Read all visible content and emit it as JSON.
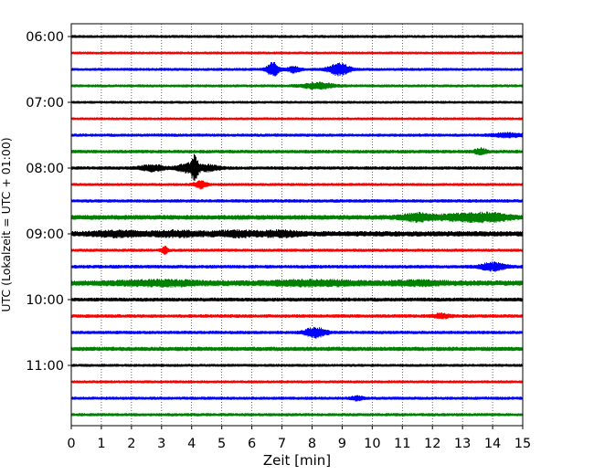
{
  "chart_data": {
    "type": "line",
    "xlabel": "Zeit  [min]",
    "ylabel": "UTC (Lokalzeit = UTC + 01:00)",
    "xlim": [
      0,
      15
    ],
    "x_ticks": [
      0,
      1,
      2,
      3,
      4,
      5,
      6,
      7,
      8,
      9,
      10,
      11,
      12,
      13,
      14,
      15
    ],
    "y_tick_labels": [
      "06:00",
      "07:00",
      "08:00",
      "09:00",
      "10:00",
      "11:00"
    ],
    "y_tick_rows": [
      0,
      4,
      8,
      12,
      16,
      20
    ],
    "row_interval_minutes": 15,
    "grid": "vertical-dotted",
    "colors": [
      "#000000",
      "#ff0000",
      "#0000ff",
      "#008000"
    ],
    "rows": [
      {
        "time": "06:00",
        "color": "#000000",
        "amp": 1.3,
        "events": []
      },
      {
        "time": "06:15",
        "color": "#ff0000",
        "amp": 1.2,
        "events": []
      },
      {
        "time": "06:30",
        "color": "#0000ff",
        "amp": 1.3,
        "events": [
          {
            "t": 6.7,
            "a": 7,
            "w": 0.2
          },
          {
            "t": 7.4,
            "a": 3,
            "w": 0.2
          },
          {
            "t": 8.9,
            "a": 6,
            "w": 0.35
          }
        ]
      },
      {
        "time": "06:45",
        "color": "#008000",
        "amp": 1.3,
        "events": [
          {
            "t": 8.2,
            "a": 3,
            "w": 0.5
          }
        ]
      },
      {
        "time": "07:00",
        "color": "#000000",
        "amp": 1.2,
        "events": []
      },
      {
        "time": "07:15",
        "color": "#ff0000",
        "amp": 1.2,
        "events": []
      },
      {
        "time": "07:30",
        "color": "#0000ff",
        "amp": 1.4,
        "events": [
          {
            "t": 14.5,
            "a": 2,
            "w": 0.5
          }
        ]
      },
      {
        "time": "07:45",
        "color": "#008000",
        "amp": 1.6,
        "events": [
          {
            "t": 13.6,
            "a": 3,
            "w": 0.2
          }
        ]
      },
      {
        "time": "08:00",
        "color": "#000000",
        "amp": 1.5,
        "events": [
          {
            "t": 2.7,
            "a": 3,
            "w": 0.4
          },
          {
            "t": 3.8,
            "a": 4,
            "w": 0.3
          },
          {
            "t": 4.1,
            "a": 12,
            "w": 0.12
          },
          {
            "t": 4.5,
            "a": 3,
            "w": 0.4
          }
        ]
      },
      {
        "time": "08:15",
        "color": "#ff0000",
        "amp": 1.3,
        "events": [
          {
            "t": 4.3,
            "a": 4,
            "w": 0.2
          }
        ]
      },
      {
        "time": "08:30",
        "color": "#0000ff",
        "amp": 1.5,
        "events": []
      },
      {
        "time": "08:45",
        "color": "#008000",
        "amp": 2.3,
        "events": [
          {
            "t": 11.5,
            "a": 3.5,
            "w": 0.5
          },
          {
            "t": 13.0,
            "a": 3,
            "w": 0.8
          },
          {
            "t": 14.0,
            "a": 3,
            "w": 0.6
          }
        ]
      },
      {
        "time": "09:00",
        "color": "#000000",
        "amp": 2.6,
        "events": [
          {
            "t": 1.5,
            "a": 2,
            "w": 0.8
          },
          {
            "t": 3.5,
            "a": 2,
            "w": 0.8
          },
          {
            "t": 5.5,
            "a": 2,
            "w": 0.8
          },
          {
            "t": 7.0,
            "a": 2,
            "w": 0.6
          }
        ]
      },
      {
        "time": "09:15",
        "color": "#ff0000",
        "amp": 1.4,
        "events": [
          {
            "t": 3.1,
            "a": 4,
            "w": 0.1
          }
        ]
      },
      {
        "time": "09:30",
        "color": "#0000ff",
        "amp": 1.6,
        "events": [
          {
            "t": 14.0,
            "a": 4,
            "w": 0.4
          }
        ]
      },
      {
        "time": "09:45",
        "color": "#008000",
        "amp": 2.6,
        "events": [
          {
            "t": 3,
            "a": 2,
            "w": 1.5
          },
          {
            "t": 8,
            "a": 2,
            "w": 1.5
          },
          {
            "t": 11.5,
            "a": 1.5,
            "w": 1.0
          }
        ]
      },
      {
        "time": "10:00",
        "color": "#000000",
        "amp": 1.8,
        "events": []
      },
      {
        "time": "10:15",
        "color": "#ff0000",
        "amp": 1.6,
        "events": [
          {
            "t": 12.3,
            "a": 2,
            "w": 0.3
          }
        ]
      },
      {
        "time": "10:30",
        "color": "#0000ff",
        "amp": 1.5,
        "events": [
          {
            "t": 8.1,
            "a": 5,
            "w": 0.35
          }
        ]
      },
      {
        "time": "10:45",
        "color": "#008000",
        "amp": 2.0,
        "events": []
      },
      {
        "time": "11:00",
        "color": "#000000",
        "amp": 1.3,
        "events": []
      },
      {
        "time": "11:15",
        "color": "#ff0000",
        "amp": 1.3,
        "events": []
      },
      {
        "time": "11:30",
        "color": "#0000ff",
        "amp": 1.4,
        "events": [
          {
            "t": 9.5,
            "a": 2,
            "w": 0.2
          }
        ]
      },
      {
        "time": "11:45",
        "color": "#008000",
        "amp": 1.4,
        "events": []
      }
    ]
  }
}
